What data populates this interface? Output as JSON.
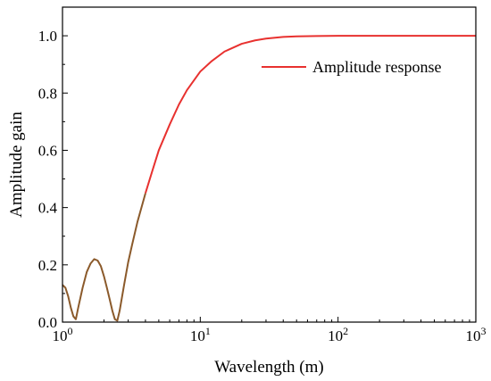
{
  "chart_data": {
    "type": "line",
    "xscale": "log",
    "xlabel": "Wavelength (m)",
    "ylabel": "Amplitude gain",
    "xlim": [
      1,
      1000
    ],
    "ylim": [
      0,
      1.1
    ],
    "grid": false,
    "legend_position": "top-right",
    "x_ticks": [
      {
        "value": 1,
        "base": "10",
        "exp": "0"
      },
      {
        "value": 10,
        "base": "10",
        "exp": "1"
      },
      {
        "value": 100,
        "base": "10",
        "exp": "2"
      },
      {
        "value": 1000,
        "base": "10",
        "exp": "3"
      }
    ],
    "y_ticks": [
      {
        "value": 0.0,
        "label": "0.0"
      },
      {
        "value": 0.2,
        "label": "0.2"
      },
      {
        "value": 0.4,
        "label": "0.4"
      },
      {
        "value": 0.6,
        "label": "0.6"
      },
      {
        "value": 0.8,
        "label": "0.8"
      },
      {
        "value": 1.0,
        "label": "1.0"
      }
    ],
    "series": [
      {
        "name": "Amplitude response",
        "color": "#e8312f",
        "low_wavelength_color": "#8b5a2b",
        "x": [
          1.0,
          1.05,
          1.1,
          1.15,
          1.2,
          1.25,
          1.3,
          1.4,
          1.5,
          1.6,
          1.7,
          1.8,
          1.9,
          2.0,
          2.1,
          2.2,
          2.3,
          2.4,
          2.5,
          2.6,
          2.8,
          3.0,
          3.2,
          3.5,
          4.0,
          4.5,
          5,
          6,
          7,
          8,
          10,
          12,
          15,
          20,
          25,
          30,
          40,
          50,
          70,
          100,
          150,
          200,
          300,
          500,
          700,
          1000
        ],
        "y": [
          0.13,
          0.12,
          0.09,
          0.05,
          0.02,
          0.01,
          0.05,
          0.12,
          0.175,
          0.205,
          0.22,
          0.215,
          0.195,
          0.16,
          0.12,
          0.08,
          0.04,
          0.01,
          0.005,
          0.04,
          0.13,
          0.21,
          0.27,
          0.35,
          0.45,
          0.53,
          0.6,
          0.69,
          0.76,
          0.81,
          0.875,
          0.91,
          0.945,
          0.972,
          0.984,
          0.99,
          0.996,
          0.998,
          0.999,
          1.0,
          1.0,
          1.0,
          1.0,
          1.0,
          1.0,
          1.0
        ]
      }
    ]
  }
}
